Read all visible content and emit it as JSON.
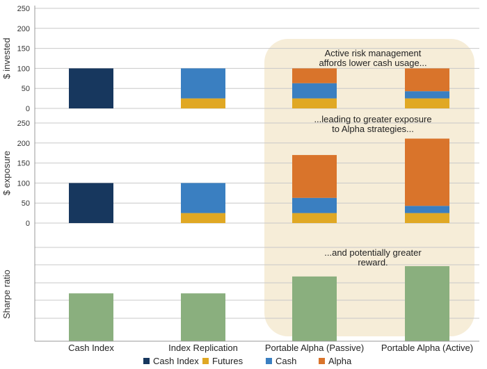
{
  "chart_data": {
    "type": "bar",
    "stacked": true,
    "categories": [
      "Cash Index",
      "Index Replication",
      "Portable Alpha (Passive)",
      "Portable Alpha (Active)"
    ],
    "legend": {
      "placement": "bottom",
      "entries": [
        {
          "name": "Cash Index",
          "color": "#17375E"
        },
        {
          "name": "Futures",
          "color": "#E0A824"
        },
        {
          "name": "Cash",
          "color": "#3A7FC1"
        },
        {
          "name": "Alpha",
          "color": "#D9742B"
        }
      ]
    },
    "highlight": {
      "categories": [
        "Portable Alpha (Passive)",
        "Portable Alpha (Active)"
      ],
      "color": "#F6EDD8"
    },
    "panels": [
      {
        "ylabel": "$ invested",
        "ylim": [
          0,
          250
        ],
        "yticks": [
          0,
          50,
          100,
          150,
          200,
          250
        ],
        "grid": true,
        "annotation": [
          "Active risk management",
          "affords lower cash usage..."
        ],
        "series": [
          {
            "name": "Cash Index",
            "values": [
              100,
              0,
              0,
              0
            ]
          },
          {
            "name": "Futures",
            "values": [
              0,
              25,
              25,
              25
            ]
          },
          {
            "name": "Cash",
            "values": [
              0,
              75,
              38,
              18
            ]
          },
          {
            "name": "Alpha",
            "values": [
              0,
              0,
              37,
              57
            ]
          }
        ]
      },
      {
        "ylabel": "$ exposure",
        "ylim": [
          0,
          250
        ],
        "yticks": [
          0,
          50,
          100,
          150,
          200,
          250
        ],
        "grid": true,
        "annotation": [
          "...leading to greater exposure",
          "to Alpha strategies..."
        ],
        "series": [
          {
            "name": "Cash Index",
            "values": [
              100,
              0,
              0,
              0
            ]
          },
          {
            "name": "Futures",
            "values": [
              0,
              25,
              25,
              25
            ]
          },
          {
            "name": "Cash",
            "values": [
              0,
              75,
              38,
              18
            ]
          },
          {
            "name": "Alpha",
            "values": [
              0,
              0,
              107,
              168
            ]
          }
        ]
      },
      {
        "ylabel": "Sharpe ratio",
        "ylim": [
          0,
          1
        ],
        "yticks": [],
        "grid": true,
        "annotation": [
          "...and potentially greater",
          "reward."
        ],
        "series": [
          {
            "name": "Sharpe ratio",
            "color": "#8AAF7E",
            "values": [
              0.51,
              0.51,
              0.69,
              0.8
            ]
          }
        ]
      }
    ]
  }
}
